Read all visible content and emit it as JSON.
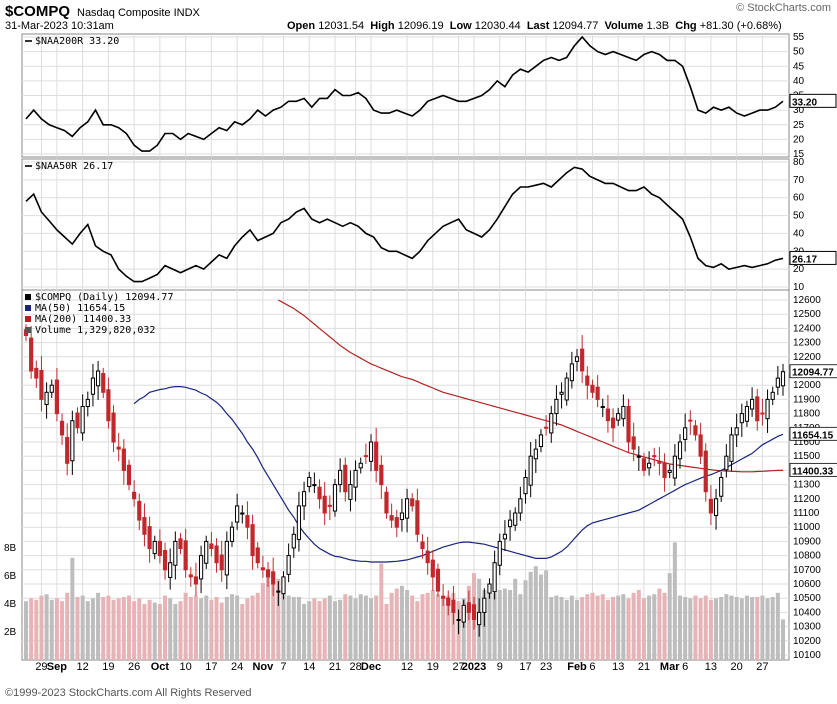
{
  "header": {
    "symbol": "$COMPQ",
    "exchange": "Nasdaq Composite INDX",
    "date": "31-Mar-2023 10:31am",
    "brand": "© StockCharts.com",
    "ohlc": {
      "open_label": "Open",
      "open": "12031.54",
      "high_label": "High",
      "high": "12096.19",
      "low_label": "Low",
      "low": "12030.44",
      "last_label": "Last",
      "last": "12094.77",
      "vol_label": "Volume",
      "vol": "1.3B",
      "chg_label": "Chg",
      "chg": "+81.30 (+0.68%)"
    }
  },
  "footer": "©1999-2023 StockCharts.com All Rights Reserved",
  "chart_data": [
    {
      "type": "line",
      "legend": "$NAA200R 33.20",
      "last_label": "33.20",
      "ylim": [
        15,
        55
      ],
      "yticks": [
        15,
        20,
        25,
        30,
        35,
        40,
        45,
        50,
        55
      ],
      "values": [
        27,
        30,
        27,
        25,
        24,
        23,
        21,
        24,
        26,
        30,
        25,
        25,
        24,
        22,
        18,
        16,
        16,
        18,
        22,
        22,
        20,
        22,
        21,
        20,
        22,
        24,
        23,
        26,
        25,
        27,
        30,
        28,
        30,
        31,
        33,
        33,
        34,
        31,
        34,
        34,
        37,
        35,
        35,
        36,
        34,
        30,
        29,
        29,
        30,
        29,
        28,
        30,
        33,
        34,
        35,
        34,
        33,
        33,
        34,
        35,
        37,
        40,
        38,
        42,
        44,
        43,
        45,
        47,
        48,
        47,
        48,
        52,
        55,
        52,
        50,
        49,
        50,
        49,
        48,
        47,
        49,
        50,
        49,
        47,
        47,
        45,
        38,
        30,
        29,
        31,
        30,
        31,
        29,
        28,
        29,
        30,
        30,
        31,
        33
      ],
      "color": "#000000"
    },
    {
      "type": "line",
      "legend": "$NAA50R 26.17",
      "last_label": "26.17",
      "ylim": [
        10,
        80
      ],
      "yticks": [
        10,
        20,
        30,
        40,
        50,
        60,
        70,
        80
      ],
      "values": [
        58,
        62,
        52,
        47,
        42,
        38,
        34,
        40,
        45,
        33,
        30,
        28,
        20,
        16,
        13,
        13,
        15,
        17,
        22,
        20,
        18,
        20,
        22,
        20,
        24,
        28,
        26,
        33,
        38,
        42,
        36,
        38,
        40,
        46,
        48,
        52,
        54,
        48,
        46,
        48,
        46,
        44,
        46,
        44,
        40,
        38,
        32,
        30,
        30,
        28,
        26,
        30,
        36,
        40,
        44,
        46,
        48,
        42,
        40,
        38,
        42,
        48,
        55,
        62,
        66,
        66,
        67,
        68,
        66,
        70,
        74,
        77,
        76,
        72,
        70,
        68,
        68,
        66,
        64,
        64,
        66,
        62,
        60,
        56,
        52,
        48,
        38,
        26,
        22,
        21,
        23,
        20,
        21,
        22,
        21,
        22,
        23,
        25,
        26
      ],
      "color": "#000000"
    },
    {
      "type": "candlestick",
      "legend": [
        "$COMPQ (Daily) 12094.77",
        "MA(50) 11654.15",
        "MA(200) 11400.33",
        "Volume 1,329,820,032"
      ],
      "ylim": [
        10100,
        12600
      ],
      "yticks": [
        10100,
        10200,
        10300,
        10400,
        10500,
        10600,
        10700,
        10800,
        10900,
        11000,
        11100,
        11200,
        11300,
        11400,
        11500,
        11600,
        11700,
        11800,
        11900,
        12000,
        12100,
        12200,
        12300,
        12400,
        12500,
        12600
      ],
      "volume_ticks": [
        "2B",
        "4B",
        "6B",
        "8B"
      ],
      "x_labels": [
        {
          "label": "29",
          "i": 3
        },
        {
          "label": "Sep",
          "i": 6,
          "bold": true
        },
        {
          "label": "12",
          "i": 11
        },
        {
          "label": "19",
          "i": 16
        },
        {
          "label": "26",
          "i": 21
        },
        {
          "label": "Oct",
          "i": 26,
          "bold": true
        },
        {
          "label": "10",
          "i": 31
        },
        {
          "label": "17",
          "i": 36
        },
        {
          "label": "24",
          "i": 41
        },
        {
          "label": "Nov",
          "i": 46,
          "bold": true
        },
        {
          "label": "7",
          "i": 50
        },
        {
          "label": "14",
          "i": 55
        },
        {
          "label": "21",
          "i": 60
        },
        {
          "label": "28",
          "i": 64
        },
        {
          "label": "Dec",
          "i": 67,
          "bold": true
        },
        {
          "label": "12",
          "i": 74
        },
        {
          "label": "19",
          "i": 79
        },
        {
          "label": "27",
          "i": 84
        },
        {
          "label": "2023",
          "i": 87,
          "bold": true
        },
        {
          "label": "9",
          "i": 92
        },
        {
          "label": "17",
          "i": 97
        },
        {
          "label": "23",
          "i": 101
        },
        {
          "label": "Feb",
          "i": 107,
          "bold": true
        },
        {
          "label": "6",
          "i": 110
        },
        {
          "label": "13",
          "i": 115
        },
        {
          "label": "21",
          "i": 120
        },
        {
          "label": "Mar",
          "i": 125,
          "bold": true
        },
        {
          "label": "6",
          "i": 128
        },
        {
          "label": "13",
          "i": 133
        },
        {
          "label": "20",
          "i": 138
        },
        {
          "label": "27",
          "i": 143
        }
      ],
      "ma50_label": "11654.15",
      "ma200_label": "11400.33",
      "last_label": "12094.77",
      "close": [
        12350,
        12100,
        12050,
        11900,
        11950,
        12000,
        11800,
        11650,
        11450,
        11750,
        11700,
        11850,
        11900,
        12050,
        12100,
        11950,
        11750,
        11600,
        11550,
        11400,
        11300,
        11200,
        11050,
        10950,
        10850,
        10900,
        10800,
        10700,
        10750,
        10900,
        10850,
        10700,
        10650,
        10600,
        10800,
        10900,
        10850,
        10750,
        10700,
        10900,
        11000,
        11150,
        11100,
        11000,
        10800,
        10750,
        10700,
        10650,
        10600,
        10550,
        10650,
        10800,
        10950,
        11150,
        11250,
        11350,
        11300,
        11200,
        11100,
        11150,
        11300,
        11400,
        11250,
        11300,
        11400,
        11450,
        11500,
        11600,
        11400,
        11300,
        11100,
        11050,
        11000,
        11100,
        11200,
        11150,
        10950,
        10850,
        10750,
        10650,
        10550,
        10500,
        10450,
        10400,
        10350,
        10450,
        10400,
        10350,
        10400,
        10500,
        10600,
        10750,
        10900,
        10950,
        11050,
        11100,
        11200,
        11350,
        11500,
        11550,
        11650,
        11700,
        11800,
        11900,
        11950,
        12050,
        12150,
        12200,
        12100,
        12000,
        11950,
        11900,
        11850,
        11750,
        11700,
        11800,
        11850,
        11600,
        11550,
        11500,
        11400,
        11450,
        11500,
        11450,
        11350,
        11400,
        11500,
        11600,
        11700,
        11750,
        11650,
        11500,
        11250,
        11100,
        11200,
        11350,
        11500,
        11650,
        11700,
        11800,
        11850,
        11900,
        11750,
        11800,
        11900,
        11950,
        12050,
        12094.77
      ],
      "ma50": [
        11870,
        11900,
        11920,
        11950,
        11960,
        11970,
        11975,
        11985,
        11990,
        11990,
        11985,
        11975,
        11965,
        11945,
        11930,
        11905,
        11880,
        11845,
        11800,
        11760,
        11710,
        11660,
        11600,
        11550,
        11490,
        11420,
        11360,
        11300,
        11240,
        11180,
        11120,
        11070,
        11010,
        10960,
        10920,
        10880,
        10850,
        10830,
        10810,
        10795,
        10790,
        10780,
        10770,
        10765,
        10760,
        10760,
        10755,
        10755,
        10755,
        10755,
        10758,
        10760,
        10765,
        10770,
        10780,
        10790,
        10800,
        10815,
        10830,
        10845,
        10860,
        10870,
        10880,
        10890,
        10895,
        10895,
        10890,
        10885,
        10880,
        10870,
        10860,
        10850,
        10840,
        10830,
        10820,
        10810,
        10800,
        10790,
        10780,
        10780,
        10780,
        10790,
        10810,
        10830,
        10860,
        10900,
        10940,
        10980,
        11010,
        11030,
        11040,
        11050,
        11060,
        11070,
        11080,
        11090,
        11100,
        11110,
        11120,
        11140,
        11160,
        11180,
        11200,
        11220,
        11240,
        11260,
        11280,
        11300,
        11315,
        11330,
        11345,
        11360,
        11370,
        11385,
        11400,
        11420,
        11440,
        11460,
        11480,
        11500,
        11520,
        11550,
        11580,
        11600,
        11620,
        11640,
        11654.15
      ],
      "ma200": [
        12600,
        12580,
        12560,
        12540,
        12515,
        12490,
        12460,
        12430,
        12400,
        12370,
        12340,
        12310,
        12280,
        12255,
        12230,
        12210,
        12190,
        12170,
        12150,
        12135,
        12120,
        12105,
        12090,
        12075,
        12060,
        12050,
        12040,
        12025,
        12010,
        11995,
        11980,
        11965,
        11950,
        11940,
        11930,
        11920,
        11910,
        11900,
        11890,
        11880,
        11870,
        11860,
        11850,
        11840,
        11830,
        11820,
        11810,
        11800,
        11790,
        11780,
        11770,
        11760,
        11750,
        11740,
        11730,
        11720,
        11705,
        11690,
        11675,
        11660,
        11645,
        11630,
        11615,
        11600,
        11585,
        11570,
        11555,
        11540,
        11525,
        11515,
        11505,
        11495,
        11485,
        11475,
        11465,
        11455,
        11445,
        11440,
        11435,
        11430,
        11425,
        11420,
        11415,
        11410,
        11405,
        11400,
        11398,
        11396,
        11394,
        11392,
        11390,
        11390,
        11390,
        11392,
        11394,
        11396,
        11398,
        11400,
        11400.33
      ],
      "volume": [
        4.2,
        4.4,
        4.3,
        4.6,
        4.7,
        4.3,
        4.4,
        4.2,
        4.8,
        7.3,
        4.5,
        4.6,
        4.2,
        4.4,
        4.8,
        4.5,
        4.6,
        4.3,
        4.4,
        4.5,
        4.6,
        4.2,
        4.4,
        4.0,
        4.3,
        4.1,
        4.0,
        4.6,
        4.4,
        4.0,
        4.2,
        4.8,
        4.5,
        4.6,
        4.4,
        4.6,
        4.3,
        4.5,
        4.1,
        4.5,
        4.7,
        4.6,
        4.0,
        4.4,
        4.6,
        4.8,
        5.5,
        5.9,
        5.6,
        5.8,
        5.2,
        4.6,
        4.5,
        4.5,
        4.0,
        4.2,
        4.4,
        4.2,
        4.4,
        4.6,
        4.2,
        4.3,
        4.7,
        4.6,
        4.4,
        4.7,
        4.6,
        4.4,
        4.6,
        6.9,
        4.0,
        4.8,
        5.1,
        5.3,
        5.0,
        4.6,
        4.2,
        4.7,
        4.8,
        5.0,
        4.7,
        4.5,
        4.6,
        4.8,
        4.2,
        4.4,
        5.3,
        6.2,
        5.8,
        5.0,
        4.8,
        4.8,
        5.0,
        5.1,
        5.0,
        5.8,
        4.7,
        5.7,
        6.3,
        6.7,
        6.1,
        6.4,
        4.5,
        4.6,
        4.5,
        4.3,
        4.6,
        4.3,
        4.5,
        4.7,
        4.8,
        4.6,
        4.7,
        4.3,
        4.5,
        4.6,
        4.7,
        4.4,
        4.8,
        5.0,
        4.4,
        4.6,
        4.7,
        5.1,
        4.8,
        6.2,
        8.4,
        4.6,
        4.5,
        4.4,
        4.6,
        4.4,
        4.6,
        4.3,
        4.4,
        4.5,
        4.7,
        4.6,
        4.5,
        4.4,
        4.6,
        4.5,
        4.5,
        4.6,
        4.4,
        4.5,
        4.8,
        2.9
      ]
    }
  ]
}
